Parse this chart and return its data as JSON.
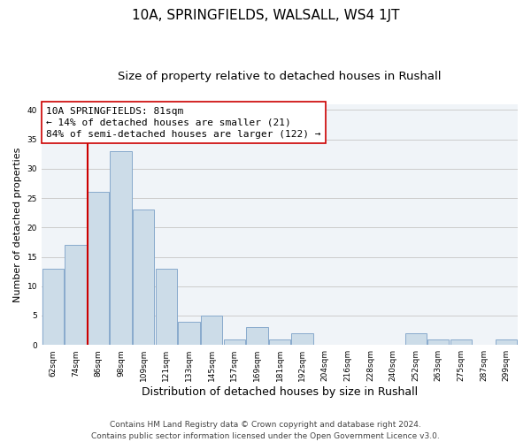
{
  "title": "10A, SPRINGFIELDS, WALSALL, WS4 1JT",
  "subtitle": "Size of property relative to detached houses in Rushall",
  "xlabel": "Distribution of detached houses by size in Rushall",
  "ylabel": "Number of detached properties",
  "footer_line1": "Contains HM Land Registry data © Crown copyright and database right 2024.",
  "footer_line2": "Contains public sector information licensed under the Open Government Licence v3.0.",
  "bar_labels": [
    "62sqm",
    "74sqm",
    "86sqm",
    "98sqm",
    "109sqm",
    "121sqm",
    "133sqm",
    "145sqm",
    "157sqm",
    "169sqm",
    "181sqm",
    "192sqm",
    "204sqm",
    "216sqm",
    "228sqm",
    "240sqm",
    "252sqm",
    "263sqm",
    "275sqm",
    "287sqm",
    "299sqm"
  ],
  "bar_values": [
    13,
    17,
    26,
    33,
    23,
    13,
    4,
    5,
    1,
    3,
    1,
    2,
    0,
    0,
    0,
    0,
    2,
    1,
    1,
    0,
    1
  ],
  "bar_color": "#ccdce8",
  "bar_edgecolor": "#88aacc",
  "vline_color": "#cc0000",
  "annotation_text": "10A SPRINGFIELDS: 81sqm\n← 14% of detached houses are smaller (21)\n84% of semi-detached houses are larger (122) →",
  "ylim": [
    0,
    41
  ],
  "yticks": [
    0,
    5,
    10,
    15,
    20,
    25,
    30,
    35,
    40
  ],
  "grid_color": "#cccccc",
  "background_color": "#f0f4f8",
  "title_fontsize": 11,
  "subtitle_fontsize": 9.5,
  "xlabel_fontsize": 9,
  "ylabel_fontsize": 8,
  "annotation_fontsize": 8,
  "footer_fontsize": 6.5,
  "tick_fontsize": 6.5
}
